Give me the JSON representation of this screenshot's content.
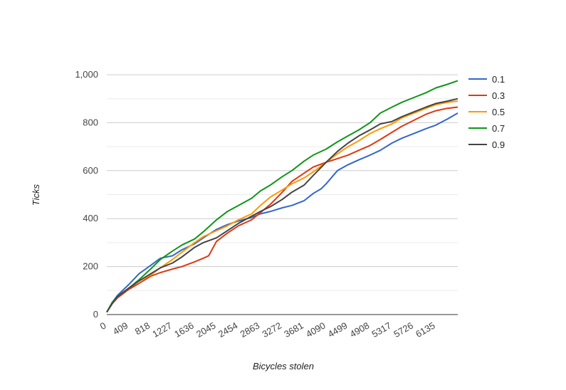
{
  "chart_data": {
    "type": "line",
    "title": "",
    "xlabel": "Bicycles stolen",
    "ylabel": "Ticks",
    "xlim": [
      0,
      6544
    ],
    "ylim": [
      0,
      1000
    ],
    "x_ticks": [
      0,
      409,
      818,
      1227,
      1636,
      2045,
      2454,
      2863,
      3272,
      3681,
      4090,
      4499,
      4908,
      5317,
      5726,
      6135
    ],
    "x_tick_labels": [
      "0",
      "409",
      "818",
      "1227",
      "1636",
      "2045",
      "2454",
      "2863",
      "3272",
      "3681",
      "4090",
      "4499",
      "4908",
      "5317",
      "5726",
      "6135"
    ],
    "y_ticks": [
      0,
      200,
      400,
      600,
      800,
      1000
    ],
    "y_tick_labels": [
      "0",
      "200",
      "400",
      "600",
      "800",
      "1,000"
    ],
    "legend_position": "right",
    "series": [
      {
        "name": "0.1",
        "color": "#3366cc",
        "x": [
          0,
          100,
          200,
          409,
          600,
          818,
          1000,
          1227,
          1400,
          1636,
          1800,
          2045,
          2250,
          2454,
          2700,
          2863,
          3050,
          3272,
          3450,
          3681,
          3850,
          4000,
          4090,
          4300,
          4499,
          4700,
          4908,
          5100,
          5317,
          5500,
          5726,
          5950,
          6135,
          6350,
          6544
        ],
        "values": [
          10,
          50,
          80,
          125,
          170,
          205,
          235,
          245,
          270,
          295,
          320,
          355,
          375,
          390,
          405,
          420,
          430,
          445,
          455,
          475,
          505,
          525,
          545,
          600,
          625,
          645,
          665,
          685,
          715,
          735,
          755,
          775,
          790,
          815,
          840
        ]
      },
      {
        "name": "0.3",
        "color": "#dc3912",
        "x": [
          0,
          100,
          200,
          409,
          600,
          818,
          1000,
          1227,
          1400,
          1636,
          1800,
          1900,
          2045,
          2250,
          2454,
          2700,
          2863,
          3050,
          3272,
          3450,
          3681,
          3850,
          4090,
          4300,
          4499,
          4700,
          4908,
          5100,
          5317,
          5500,
          5726,
          5950,
          6135,
          6350,
          6544
        ],
        "values": [
          10,
          45,
          70,
          105,
          130,
          160,
          175,
          190,
          200,
          220,
          235,
          245,
          305,
          340,
          370,
          395,
          425,
          460,
          510,
          555,
          590,
          615,
          635,
          650,
          665,
          685,
          705,
          730,
          760,
          785,
          810,
          835,
          850,
          860,
          865
        ]
      },
      {
        "name": "0.5",
        "color": "#ff9900",
        "x": [
          0,
          100,
          200,
          409,
          600,
          818,
          1000,
          1227,
          1400,
          1636,
          1800,
          2045,
          2250,
          2454,
          2700,
          2863,
          3050,
          3272,
          3450,
          3681,
          3850,
          4090,
          4300,
          4499,
          4700,
          4908,
          5100,
          5317,
          5500,
          5726,
          5950,
          6135,
          6350,
          6544
        ],
        "values": [
          10,
          45,
          75,
          110,
          140,
          165,
          195,
          230,
          260,
          300,
          325,
          350,
          370,
          395,
          420,
          455,
          490,
          520,
          545,
          570,
          595,
          635,
          670,
          700,
          725,
          755,
          775,
          795,
          820,
          840,
          860,
          875,
          885,
          890
        ]
      },
      {
        "name": "0.7",
        "color": "#109618",
        "x": [
          0,
          100,
          200,
          409,
          600,
          818,
          1000,
          1227,
          1400,
          1636,
          1800,
          2045,
          2250,
          2454,
          2700,
          2863,
          3050,
          3272,
          3450,
          3681,
          3850,
          4090,
          4300,
          4499,
          4700,
          4908,
          5100,
          5317,
          5500,
          5726,
          5950,
          6135,
          6350,
          6544
        ],
        "values": [
          10,
          50,
          75,
          110,
          145,
          190,
          230,
          265,
          290,
          315,
          345,
          395,
          430,
          455,
          485,
          515,
          540,
          575,
          600,
          640,
          665,
          690,
          720,
          745,
          770,
          800,
          840,
          865,
          885,
          905,
          925,
          945,
          960,
          975
        ]
      },
      {
        "name": "0.9",
        "color": "#444444",
        "x": [
          0,
          100,
          200,
          409,
          600,
          818,
          1000,
          1227,
          1400,
          1636,
          1800,
          2045,
          2250,
          2454,
          2700,
          2863,
          3050,
          3272,
          3450,
          3681,
          3850,
          4090,
          4300,
          4499,
          4700,
          4908,
          5100,
          5317,
          5500,
          5726,
          5950,
          6135,
          6350,
          6544
        ],
        "values": [
          10,
          45,
          75,
          110,
          140,
          170,
          195,
          215,
          240,
          280,
          300,
          320,
          350,
          380,
          410,
          430,
          450,
          480,
          510,
          540,
          580,
          635,
          680,
          715,
          745,
          770,
          795,
          805,
          825,
          845,
          865,
          880,
          890,
          900
        ]
      }
    ]
  }
}
